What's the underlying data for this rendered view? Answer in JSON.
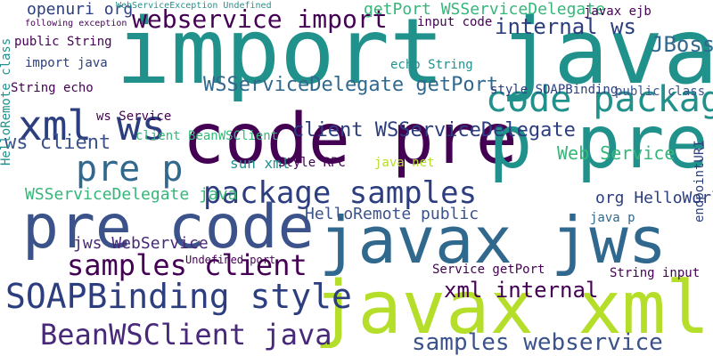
{
  "palette": {
    "purple": "#440154",
    "indigo": "#3b528b",
    "blue": "#31688e",
    "teal": "#21918c",
    "green": "#35b779",
    "lime": "#b5de2b",
    "darkblue": "#2c3e7f",
    "navy": "#482878"
  },
  "words": [
    "import javax",
    "code pre",
    "p pre",
    "pre code",
    "javax jws",
    "javax xml",
    "code package",
    "xml ws",
    "pre p",
    "package samples",
    "SOAPBinding style",
    "samples client",
    "BeanWSClient java",
    "webservice import",
    "WSServiceDelegate getPort",
    "client WSServiceDelegate",
    "samples webservice",
    "xml internal",
    "internal ws",
    "WSServiceDelegate java",
    "getPort WSServiceDelegate",
    "JBoss",
    "ws client",
    "openuri org",
    "jws WebService",
    "Web Service",
    "HelloRemote public",
    "org HelloWorld",
    "style SOAPBinding",
    "ws Service",
    "client BeanWSClient",
    "public class",
    "String echo",
    "sun xml",
    "Style RPC",
    "java net",
    "Service getPort",
    "String input",
    "javax ejb",
    "input code",
    "echo String",
    "public String",
    "import java",
    "WebServiceException Undefined",
    "following exception",
    "HelloRemote class",
    "endpointURI",
    "Undefined port",
    "java p"
  ]
}
